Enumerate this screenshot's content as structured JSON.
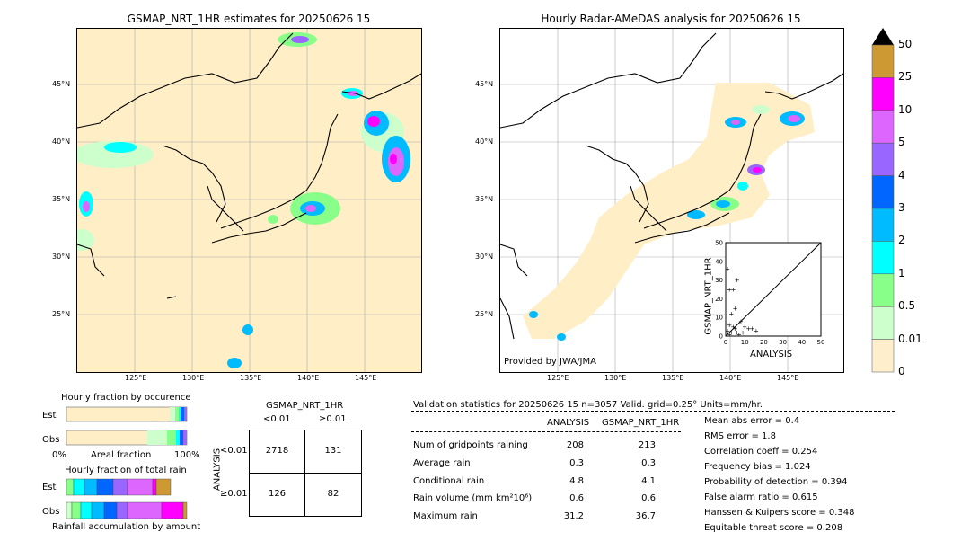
{
  "left_map": {
    "title": "GSMAP_NRT_1HR estimates for 20250626 15"
  },
  "right_map": {
    "title": "Hourly Radar-AMeDAS analysis for 20250626 15",
    "credit": "Provided by JWA/JMA"
  },
  "lat_ticks": [
    "45°N",
    "40°N",
    "35°N",
    "30°N",
    "25°N"
  ],
  "lon_ticks": [
    "125°E",
    "130°E",
    "135°E",
    "140°E",
    "145°E"
  ],
  "colorbar": {
    "labels": [
      "50",
      "25",
      "10",
      "5",
      "4",
      "3",
      "2",
      "1",
      "0.5",
      "0.01",
      "0"
    ],
    "colors": [
      "#cc9933",
      "#ff00ff",
      "#dd66ff",
      "#9966ff",
      "#0066ff",
      "#00bbff",
      "#00ffff",
      "#88ff88",
      "#ccffcc",
      "#ffeecc"
    ]
  },
  "fraction_occurrence": {
    "title": "Hourly fraction by occurence",
    "rows": [
      "Est",
      "Obs"
    ],
    "xlabel_left": "0%",
    "xlabel_mid": "Areal fraction",
    "xlabel_right": "100%"
  },
  "fraction_total": {
    "title": "Hourly fraction of total rain",
    "rows": [
      "Est",
      "Obs"
    ],
    "footer": "Rainfall accumulation by amount"
  },
  "contingency": {
    "col_title": "GSMAP_NRT_1HR",
    "col_labels": [
      "<0.01",
      "≥0.01"
    ],
    "row_title": "ANALYSIS",
    "row_labels": [
      "<0.01",
      "≥0.01"
    ],
    "cells": [
      [
        "2718",
        "131"
      ],
      [
        "126",
        "82"
      ]
    ]
  },
  "validation": {
    "header": "Validation statistics for 20250626 15  n=3057 Valid. grid=0.25° Units=mm/hr.",
    "col_headers": [
      "ANALYSIS",
      "GSMAP_NRT_1HR"
    ],
    "rows": [
      {
        "label": "Num of gridpoints raining",
        "a": "208",
        "b": "213"
      },
      {
        "label": "Average rain",
        "a": "0.3",
        "b": "0.3"
      },
      {
        "label": "Conditional rain",
        "a": "4.8",
        "b": "4.1"
      },
      {
        "label": "Rain volume (mm km²10⁶)",
        "a": "0.6",
        "b": "0.6"
      },
      {
        "label": "Maximum rain",
        "a": "31.2",
        "b": "36.7"
      }
    ],
    "scores": [
      "Mean abs error =    0.4",
      "RMS error =    1.8",
      "Correlation coeff =  0.254",
      "Frequency bias =  1.024",
      "Probability of detection =  0.394",
      "False alarm ratio =  0.615",
      "Hanssen & Kuipers score =  0.348",
      "Equitable threat score =  0.208"
    ]
  },
  "chart_data": {
    "type": "scatter",
    "xlabel": "ANALYSIS",
    "ylabel": "GSMAP_NRT_1HR",
    "xlim": [
      0,
      50
    ],
    "ylim": [
      0,
      50
    ],
    "ticks": [
      "0",
      "10",
      "20",
      "30",
      "40",
      "50"
    ],
    "points": [
      [
        1,
        36
      ],
      [
        2,
        25
      ],
      [
        4,
        25
      ],
      [
        6,
        30
      ],
      [
        5,
        15
      ],
      [
        3,
        12
      ],
      [
        8,
        8
      ],
      [
        10,
        5
      ],
      [
        12,
        4
      ],
      [
        14,
        4
      ],
      [
        16,
        3
      ],
      [
        2,
        6
      ],
      [
        4,
        5
      ],
      [
        1,
        3
      ],
      [
        3,
        2
      ],
      [
        6,
        2
      ],
      [
        7,
        1
      ],
      [
        9,
        2
      ],
      [
        2,
        1
      ],
      [
        5,
        4
      ]
    ]
  }
}
